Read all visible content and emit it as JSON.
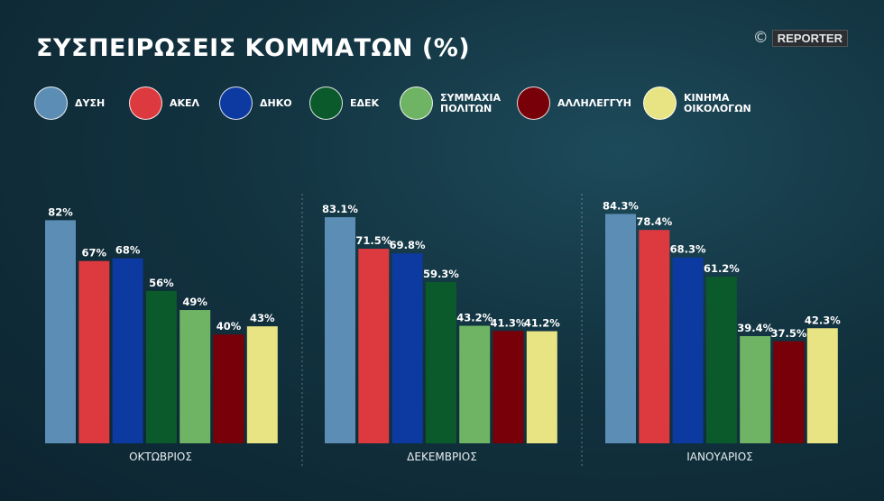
{
  "title": "ΣΥΣΠΕΙΡΩΣΕΙΣ ΚΟΜΜΑΤΩΝ (%)",
  "credit": {
    "symbol": "©",
    "brand": "REPORTER"
  },
  "legend": [
    {
      "label": "ΔΥΣΗ",
      "color": "#5b8db5"
    },
    {
      "label": "ΑΚΕΛ",
      "color": "#dd3a40"
    },
    {
      "label": "ΔΗΚΟ",
      "color": "#0d3aa0"
    },
    {
      "label": "ΕΔΕΚ",
      "color": "#0b5a2c"
    },
    {
      "label": "ΣΥΜΜΑΧΙΑ\nΠΟΛΙΤΩΝ",
      "color": "#6eb464"
    },
    {
      "label": "ΑΛΛΗΛΕΓΓΥΗ",
      "color": "#780009"
    },
    {
      "label": "ΚΙΝΗΜΑ\nΟΙΚΟΛΟΓΩΝ",
      "color": "#e8e484"
    }
  ],
  "chart_data": {
    "type": "bar",
    "title": "ΣΥΣΠΕΙΡΩΣΕΙΣ ΚΟΜΜΑΤΩΝ (%)",
    "ylim": [
      0,
      100
    ],
    "grid": false,
    "legend_position": "top",
    "groups": [
      {
        "label": "ΟΚΤΩΒΡΙΟΣ",
        "values": [
          82,
          67,
          68,
          56,
          49,
          40,
          43
        ],
        "value_labels": [
          "82%",
          "67%",
          "68%",
          "56%",
          "49%",
          "40%",
          "43%"
        ]
      },
      {
        "label": "ΔΕΚΕΜΒΡΙΟΣ",
        "values": [
          83.1,
          71.5,
          69.8,
          59.3,
          43.2,
          41.3,
          41.2
        ],
        "value_labels": [
          "83.1%",
          "71.5%",
          "69.8%",
          "59.3%",
          "43.2%",
          "41.3%",
          "41.2%"
        ]
      },
      {
        "label": "ΙΑΝΟΥΑΡΙΟΣ",
        "values": [
          84.3,
          78.4,
          68.3,
          61.2,
          39.4,
          37.5,
          42.3
        ],
        "value_labels": [
          "84.3%",
          "78.4%",
          "68.3%",
          "61.2%",
          "39.4%",
          "37.5%",
          "42.3%"
        ]
      }
    ]
  }
}
